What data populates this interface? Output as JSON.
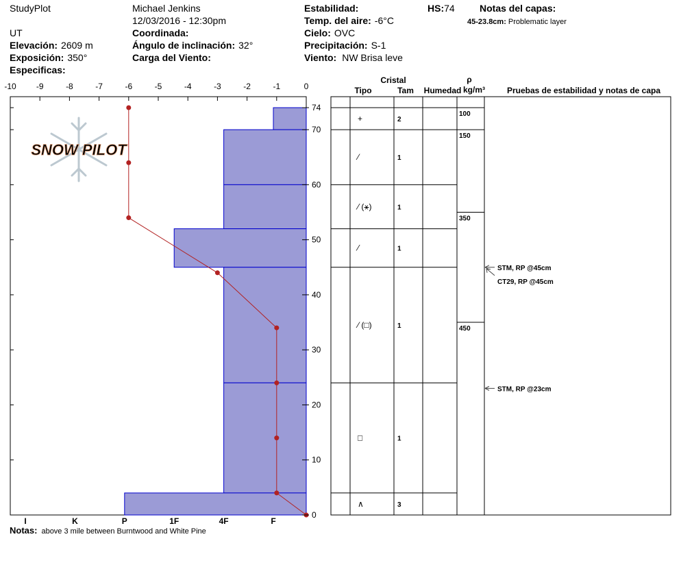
{
  "header": {
    "app": "StudyPlot",
    "observer": "Michael Jenkins",
    "date": "12/03/2016 - 12:30pm",
    "state": "UT",
    "elevation": {
      "label": "Elevación:",
      "value": "2609 m"
    },
    "aspect": {
      "label": "Exposición:",
      "value": "350°"
    },
    "specifics": {
      "label": "Especificas:"
    },
    "coordinates": {
      "label": "Coordinada:"
    },
    "slope": {
      "label": "Ángulo de inclinación:",
      "value": "32°"
    },
    "wind_loading": {
      "label": "Carga del Viento:"
    },
    "stability": {
      "label": "Estabilidad:"
    },
    "air_temp": {
      "label": "Temp. del aire:",
      "value": "-6°C"
    },
    "sky": {
      "label": "Cielo:",
      "value": "OVC"
    },
    "precipitation": {
      "label": "Precipitación:",
      "value": "S-1"
    },
    "wind": {
      "label": "Viento:",
      "value": "NW Brisa leve"
    },
    "hs": {
      "label": "HS:",
      "value": "74"
    },
    "layer_notes": {
      "label": "Notas del capas:",
      "range": "45-23.8cm:",
      "text": "Problematic layer"
    }
  },
  "chart_data": {
    "type": "profile",
    "logo": "SNOW PILOT",
    "xlim": [
      -10,
      0
    ],
    "xticks": [
      -10,
      -9,
      -8,
      -7,
      -6,
      -5,
      -4,
      -3,
      -2,
      -1,
      0
    ],
    "ylim": [
      0,
      74
    ],
    "yticks": [
      0,
      10,
      20,
      30,
      40,
      50,
      60,
      70,
      74
    ],
    "hardness_scale": [
      "I",
      "K",
      "P",
      "1F",
      "4F",
      "F"
    ],
    "bar_color": "#9b9bd6",
    "layers": [
      {
        "top": 74,
        "bottom": 70,
        "hardness": "F",
        "grain": "+",
        "size": 2
      },
      {
        "top": 70,
        "bottom": 60,
        "hardness": "4F",
        "grain": "⁄",
        "size": 1
      },
      {
        "top": 60,
        "bottom": 52,
        "hardness": "4F",
        "grain": "⁄ (⚹)",
        "size": 1
      },
      {
        "top": 52,
        "bottom": 45,
        "hardness": "1F",
        "grain": "⁄",
        "size": 1
      },
      {
        "top": 45,
        "bottom": 24,
        "hardness": "4F",
        "grain": "⁄ (□)",
        "size": 1
      },
      {
        "top": 24,
        "bottom": 4,
        "hardness": "4F",
        "grain": "□",
        "size": 1
      },
      {
        "top": 4,
        "bottom": 0,
        "hardness": "P",
        "grain": "∧",
        "size": 3
      }
    ],
    "temperature": {
      "color": "#b22222",
      "depth": [
        74,
        64,
        54,
        44,
        34,
        24,
        14,
        4,
        0
      ],
      "values": [
        -6,
        -6,
        -6,
        -3,
        -1,
        -1,
        -1,
        -1,
        0
      ]
    },
    "density": [
      {
        "top": 74,
        "value": 100
      },
      {
        "top": 70,
        "value": 150
      },
      {
        "top": 55,
        "value": 350
      },
      {
        "top": 35,
        "value": 450
      }
    ],
    "tests": [
      {
        "depth": 45,
        "label": "STM, RP @45cm"
      },
      {
        "depth": 45,
        "label": "CT29, RP @45cm"
      },
      {
        "depth": 23,
        "label": "STM, RP @23cm"
      }
    ],
    "table_headers": {
      "crystal": "Cristal",
      "type": "Tipo",
      "size": "Tam",
      "moisture": "Humedad",
      "rho": "ρ",
      "density_unit": "kg/m³",
      "tests": "Pruebas de estabilidad y notas de capa"
    }
  },
  "footer": {
    "label": "Notas:",
    "text": "above 3 mile between Burntwood and White Pine"
  }
}
